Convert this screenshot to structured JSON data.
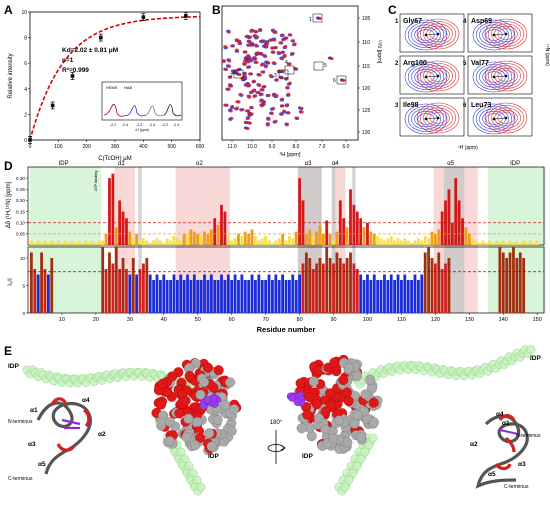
{
  "panels": {
    "A": {
      "letter": "A",
      "ylabel": "Relative intensity",
      "xlabel": "C(TcOH) μM",
      "fit_text": [
        "Kd=2.02 ± 0.81 μM",
        "n=1",
        "R²=0.999"
      ],
      "inset_labels": [
        "HEME",
        "HAB"
      ],
      "inset_xlabel": "¹H (ppm)",
      "inset_ticks": [
        "-2.2",
        "-2.4",
        "-2.2",
        "-2.4",
        "-2.2",
        "-2.4"
      ]
    },
    "B": {
      "letter": "B",
      "xlabel": "¹H [ppm]",
      "ylabel": "¹⁵N [ppm]",
      "box_labels": [
        "1",
        "2",
        "3",
        "4",
        "5",
        "6"
      ]
    },
    "C": {
      "letter": "C",
      "residues": [
        "Gly67",
        "Asp69",
        "Arg100",
        "Val77",
        "Ile98",
        "Leu73"
      ],
      "numbers": [
        "1",
        "4",
        "2",
        "5",
        "3",
        "6"
      ],
      "xlabel": "¹H (ppm)",
      "ylabel": "¹⁵N (ppm)"
    },
    "D": {
      "letter": "D",
      "ylabel_top": "Δδ (¹H,¹⁵N) [ppm]",
      "ylabel_bottom": "I₀/I",
      "xlabel": "Residue number",
      "regions": [
        "IDP",
        "α1",
        "α2",
        "α3",
        "α4",
        "α5",
        "IDP"
      ],
      "annotation": "ATP binding"
    },
    "E": {
      "letter": "E",
      "labels_left": [
        "IDP",
        "α1",
        "α4",
        "N-terminus",
        "α2",
        "α3",
        "α5",
        "C-terminus",
        "IDP"
      ],
      "labels_right": [
        "IDP",
        "α4",
        "α1",
        "N-terminus",
        "α2",
        "α3",
        "α5",
        "C-terminus",
        "IDP"
      ],
      "rotation": "180°"
    }
  },
  "chart_data": [
    {
      "type": "scatter",
      "panel": "A",
      "x": [
        0,
        80,
        150,
        250,
        400,
        550
      ],
      "y": [
        0.0,
        2.7,
        5.0,
        8.0,
        9.6,
        9.7
      ],
      "fit_curve": "dashed red saturation",
      "xlim": [
        0,
        600
      ],
      "ylim": [
        0,
        10
      ],
      "xticks": [
        "0",
        "100",
        "200",
        "300",
        "400",
        "500",
        "600"
      ],
      "yticks": [
        "0",
        "2",
        "4",
        "6",
        "8",
        "10"
      ]
    },
    {
      "type": "bar",
      "panel": "D-top",
      "ylim": [
        0,
        0.35
      ],
      "yticks": [
        "0.05",
        "0.10",
        "0.15",
        "0.20",
        "0.25",
        "0.30"
      ],
      "thresholds": [
        0.05,
        0.1
      ],
      "residues_start": 1,
      "values": [
        0.02,
        0.01,
        0.02,
        0.01,
        0.02,
        0.01,
        0.02,
        0.01,
        0.02,
        0.01,
        0.02,
        0.01,
        0.02,
        0.01,
        0.02,
        0.01,
        0.02,
        0.01,
        0.02,
        0.01,
        0.02,
        0.02,
        0.05,
        0.3,
        0.32,
        0.08,
        0.2,
        0.15,
        0.12,
        0.06,
        0.03,
        0.05,
        0.02,
        0.03,
        0.02,
        0.01,
        0.02,
        0.03,
        0.02,
        0.01,
        0.03,
        0.02,
        0.04,
        0.03,
        0.02,
        0.05,
        0.04,
        0.07,
        0.06,
        0.05,
        0.04,
        0.06,
        0.05,
        0.07,
        0.12,
        0.09,
        0.18,
        0.15,
        0.04,
        0.02,
        0.03,
        0.05,
        0.04,
        0.06,
        0.05,
        0.07,
        0.04,
        0.02,
        0.03,
        0.04,
        0.02,
        0.01,
        0.02,
        0.03,
        0.05,
        0.02,
        0.04,
        0.03,
        0.06,
        0.3,
        0.2,
        0.05,
        0.07,
        0.04,
        0.06,
        0.09,
        0.05,
        0.11,
        0.05,
        0.02,
        0.06,
        0.2,
        0.12,
        0.08,
        0.25,
        0.18,
        0.15,
        0.12,
        0.08,
        0.1,
        0.06,
        0.05,
        0.04,
        0.03,
        0.02,
        0.03,
        0.04,
        0.02,
        0.03,
        0.02,
        0.03,
        0.02,
        0.01,
        0.02,
        0.03,
        0.02,
        0.04,
        0.03,
        0.06,
        0.05,
        0.07,
        0.15,
        0.2,
        0.25,
        0.1,
        0.3,
        0.2,
        0.12,
        0.08,
        0.05,
        0.03,
        0.02,
        0.01,
        0.02,
        0.01,
        0.02,
        0.01,
        0.02,
        0.01,
        0.02,
        0.01,
        0.02,
        0.01,
        0.02,
        0.01,
        0.02,
        0.01,
        0.02,
        0.01,
        0.02
      ]
    },
    {
      "type": "bar",
      "panel": "D-bottom",
      "ylim": [
        0,
        12
      ],
      "yticks": [
        "0",
        "5",
        "10"
      ],
      "threshold": 7.5,
      "xticks": [
        "10",
        "20",
        "30",
        "40",
        "50",
        "60",
        "70",
        "80",
        "90",
        "100",
        "110",
        "120",
        "130",
        "140",
        "150"
      ],
      "values": [
        11,
        8,
        7,
        11,
        8,
        7,
        10,
        0,
        0,
        0,
        0,
        0,
        0,
        0,
        0,
        0,
        0,
        0,
        0,
        0,
        0,
        12,
        8,
        11,
        9,
        12,
        8,
        10,
        8,
        7,
        10,
        7,
        8,
        9,
        10,
        7,
        6,
        7,
        6,
        7,
        6,
        6,
        7,
        6,
        7,
        6,
        7,
        6,
        7,
        6,
        6,
        7,
        6,
        7,
        6,
        6,
        7,
        6,
        7,
        6,
        7,
        6,
        7,
        6,
        6,
        7,
        6,
        7,
        6,
        6,
        7,
        6,
        7,
        6,
        7,
        6,
        6,
        7,
        6,
        7,
        9,
        11,
        10,
        8,
        9,
        10,
        9,
        12,
        10,
        9,
        11,
        10,
        9,
        10,
        11,
        9,
        8,
        7,
        6,
        7,
        6,
        7,
        6,
        6,
        7,
        6,
        7,
        6,
        7,
        6,
        7,
        6,
        6,
        7,
        6,
        7,
        11,
        12,
        10,
        9,
        11,
        8,
        9,
        10,
        0,
        0,
        0,
        0,
        0,
        0,
        0,
        0,
        0,
        0,
        0,
        0,
        0,
        0,
        12,
        11,
        10,
        11,
        12,
        10,
        11,
        10
      ]
    }
  ]
}
